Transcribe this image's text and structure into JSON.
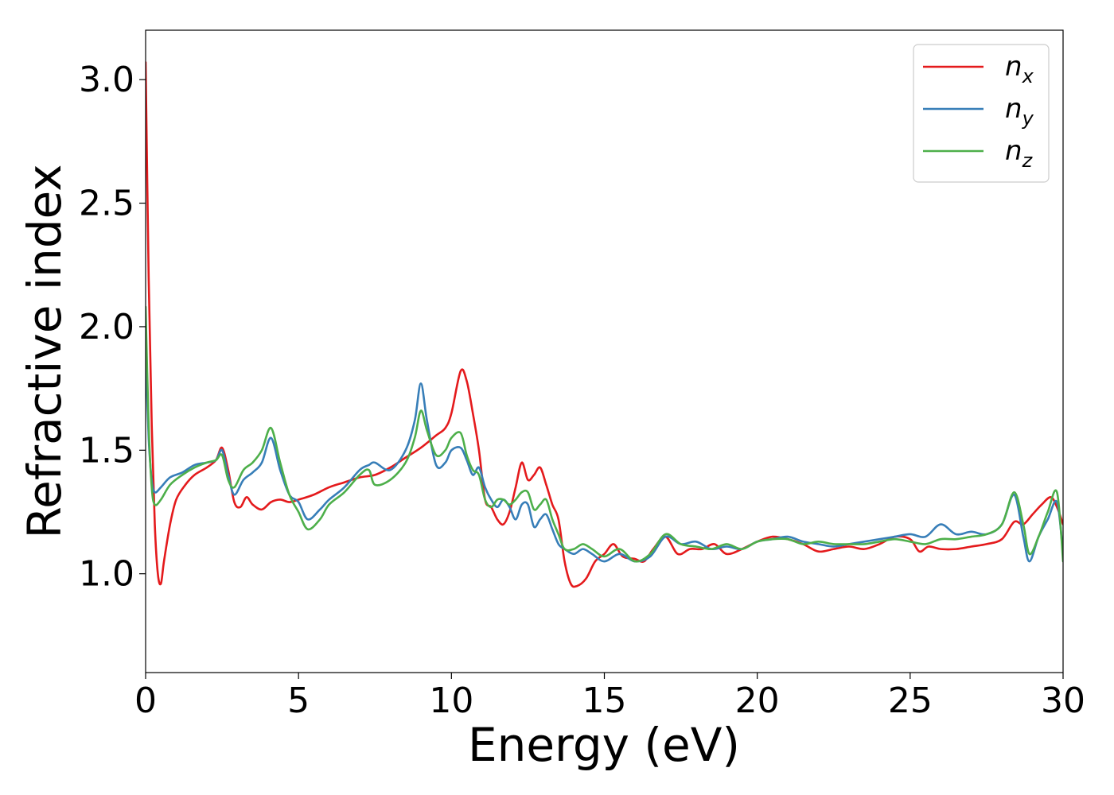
{
  "chart_data": {
    "type": "line",
    "xlabel": "Energy (eV)",
    "ylabel": "Refractive index",
    "xlim": [
      0,
      30
    ],
    "ylim": [
      0.6,
      3.2
    ],
    "xticks": [
      0,
      5,
      10,
      15,
      20,
      25,
      30
    ],
    "xtick_labels": [
      "0",
      "5",
      "10",
      "15",
      "20",
      "25",
      "30"
    ],
    "yticks": [
      1.0,
      1.5,
      2.0,
      2.5,
      3.0
    ],
    "ytick_labels": [
      "1.0",
      "1.5",
      "2.0",
      "2.5",
      "3.0"
    ],
    "grid": false,
    "legend_position": "top-right",
    "series": [
      {
        "name": "n_x",
        "label_main": "n",
        "label_sub": "x",
        "color": "#e41a1c",
        "x": [
          0,
          0.1,
          0.2,
          0.3,
          0.4,
          0.5,
          0.6,
          0.8,
          1.0,
          1.3,
          1.6,
          2.0,
          2.3,
          2.5,
          2.7,
          2.9,
          3.1,
          3.3,
          3.5,
          3.8,
          4.1,
          4.4,
          4.7,
          5.0,
          5.5,
          6.0,
          6.5,
          7.0,
          7.5,
          8.0,
          8.5,
          9.0,
          9.5,
          9.8,
          10.0,
          10.3,
          10.5,
          10.7,
          10.9,
          11.1,
          11.3,
          11.5,
          11.7,
          11.9,
          12.1,
          12.3,
          12.5,
          12.7,
          12.9,
          13.1,
          13.3,
          13.5,
          13.7,
          13.9,
          14.1,
          14.4,
          14.7,
          15.0,
          15.3,
          15.6,
          16.0,
          16.3,
          16.6,
          17.0,
          17.4,
          17.8,
          18.2,
          18.6,
          19.0,
          19.5,
          20.0,
          20.5,
          21.0,
          21.5,
          22.0,
          22.5,
          23.0,
          23.5,
          24.0,
          24.5,
          25.0,
          25.3,
          25.6,
          26.0,
          26.5,
          27.0,
          27.5,
          28.0,
          28.4,
          28.7,
          29.0,
          29.3,
          29.6,
          29.8,
          30.0
        ],
        "y": [
          3.07,
          2.2,
          1.6,
          1.2,
          1.0,
          0.96,
          1.05,
          1.2,
          1.3,
          1.36,
          1.4,
          1.43,
          1.46,
          1.51,
          1.42,
          1.29,
          1.27,
          1.31,
          1.28,
          1.26,
          1.29,
          1.3,
          1.29,
          1.3,
          1.32,
          1.35,
          1.37,
          1.39,
          1.4,
          1.43,
          1.47,
          1.51,
          1.56,
          1.59,
          1.65,
          1.82,
          1.78,
          1.65,
          1.5,
          1.3,
          1.27,
          1.22,
          1.2,
          1.25,
          1.35,
          1.45,
          1.38,
          1.4,
          1.43,
          1.36,
          1.28,
          1.22,
          1.05,
          0.96,
          0.95,
          0.98,
          1.05,
          1.08,
          1.12,
          1.07,
          1.06,
          1.05,
          1.1,
          1.15,
          1.08,
          1.1,
          1.1,
          1.12,
          1.08,
          1.1,
          1.13,
          1.15,
          1.14,
          1.12,
          1.09,
          1.1,
          1.11,
          1.1,
          1.12,
          1.15,
          1.14,
          1.09,
          1.11,
          1.1,
          1.1,
          1.11,
          1.12,
          1.14,
          1.21,
          1.2,
          1.24,
          1.28,
          1.31,
          1.27,
          1.2
        ]
      },
      {
        "name": "n_y",
        "label_main": "n",
        "label_sub": "y",
        "color": "#377eb8",
        "x": [
          0,
          0.1,
          0.2,
          0.3,
          0.5,
          0.8,
          1.2,
          1.6,
          2.0,
          2.3,
          2.5,
          2.7,
          2.9,
          3.2,
          3.5,
          3.8,
          4.1,
          4.4,
          4.7,
          5.0,
          5.3,
          5.7,
          6.0,
          6.5,
          7.0,
          7.3,
          7.5,
          8.0,
          8.5,
          8.8,
          9.0,
          9.2,
          9.5,
          9.8,
          10.0,
          10.3,
          10.5,
          10.7,
          10.9,
          11.1,
          11.3,
          11.5,
          11.7,
          11.9,
          12.1,
          12.3,
          12.5,
          12.7,
          12.9,
          13.1,
          13.3,
          13.5,
          13.7,
          14.0,
          14.3,
          14.6,
          15.0,
          15.5,
          16.0,
          16.5,
          17.0,
          17.5,
          18.0,
          18.5,
          19.0,
          19.5,
          20.0,
          20.5,
          21.0,
          21.5,
          22.0,
          22.5,
          23.0,
          23.5,
          24.0,
          24.5,
          25.0,
          25.5,
          26.0,
          26.5,
          27.0,
          27.5,
          28.0,
          28.4,
          28.7,
          28.9,
          29.2,
          29.5,
          29.8,
          30.0
        ],
        "y": [
          1.9,
          1.55,
          1.38,
          1.33,
          1.35,
          1.39,
          1.41,
          1.44,
          1.45,
          1.46,
          1.5,
          1.4,
          1.32,
          1.38,
          1.41,
          1.45,
          1.55,
          1.42,
          1.32,
          1.29,
          1.22,
          1.26,
          1.3,
          1.35,
          1.42,
          1.44,
          1.45,
          1.42,
          1.5,
          1.62,
          1.77,
          1.62,
          1.44,
          1.45,
          1.5,
          1.51,
          1.46,
          1.4,
          1.43,
          1.35,
          1.3,
          1.27,
          1.3,
          1.27,
          1.22,
          1.28,
          1.28,
          1.19,
          1.22,
          1.24,
          1.18,
          1.12,
          1.1,
          1.08,
          1.1,
          1.08,
          1.05,
          1.08,
          1.05,
          1.07,
          1.15,
          1.12,
          1.13,
          1.1,
          1.11,
          1.1,
          1.13,
          1.14,
          1.15,
          1.13,
          1.12,
          1.11,
          1.12,
          1.13,
          1.14,
          1.15,
          1.16,
          1.15,
          1.2,
          1.16,
          1.17,
          1.16,
          1.2,
          1.32,
          1.15,
          1.05,
          1.15,
          1.22,
          1.29,
          1.08
        ]
      },
      {
        "name": "n_z",
        "label_main": "n",
        "label_sub": "z",
        "color": "#4daf4a",
        "x": [
          0,
          0.1,
          0.2,
          0.3,
          0.5,
          0.8,
          1.2,
          1.6,
          2.0,
          2.3,
          2.5,
          2.7,
          2.9,
          3.2,
          3.5,
          3.8,
          4.1,
          4.4,
          4.7,
          5.0,
          5.3,
          5.7,
          6.0,
          6.5,
          7.0,
          7.3,
          7.5,
          8.0,
          8.5,
          8.8,
          9.0,
          9.2,
          9.5,
          9.8,
          10.0,
          10.3,
          10.5,
          10.7,
          10.9,
          11.1,
          11.3,
          11.5,
          11.7,
          11.9,
          12.1,
          12.3,
          12.5,
          12.7,
          12.9,
          13.1,
          13.3,
          13.5,
          13.7,
          14.0,
          14.3,
          14.6,
          15.0,
          15.5,
          16.0,
          16.5,
          17.0,
          17.5,
          18.0,
          18.5,
          19.0,
          19.5,
          20.0,
          20.5,
          21.0,
          21.5,
          22.0,
          22.5,
          23.0,
          23.5,
          24.0,
          24.5,
          25.0,
          25.5,
          26.0,
          26.5,
          27.0,
          27.5,
          28.0,
          28.4,
          28.7,
          28.9,
          29.2,
          29.5,
          29.8,
          30.0
        ],
        "y": [
          2.08,
          1.6,
          1.35,
          1.28,
          1.3,
          1.36,
          1.4,
          1.43,
          1.45,
          1.46,
          1.48,
          1.38,
          1.35,
          1.42,
          1.45,
          1.5,
          1.59,
          1.45,
          1.32,
          1.25,
          1.18,
          1.22,
          1.28,
          1.33,
          1.4,
          1.42,
          1.36,
          1.38,
          1.45,
          1.55,
          1.66,
          1.58,
          1.48,
          1.5,
          1.55,
          1.57,
          1.48,
          1.42,
          1.4,
          1.3,
          1.27,
          1.3,
          1.3,
          1.28,
          1.3,
          1.33,
          1.33,
          1.26,
          1.28,
          1.3,
          1.22,
          1.16,
          1.1,
          1.1,
          1.12,
          1.1,
          1.07,
          1.1,
          1.05,
          1.08,
          1.16,
          1.12,
          1.11,
          1.1,
          1.12,
          1.1,
          1.13,
          1.14,
          1.14,
          1.12,
          1.13,
          1.12,
          1.12,
          1.12,
          1.13,
          1.14,
          1.13,
          1.12,
          1.14,
          1.14,
          1.15,
          1.16,
          1.2,
          1.33,
          1.2,
          1.08,
          1.15,
          1.25,
          1.33,
          1.05
        ]
      }
    ]
  }
}
